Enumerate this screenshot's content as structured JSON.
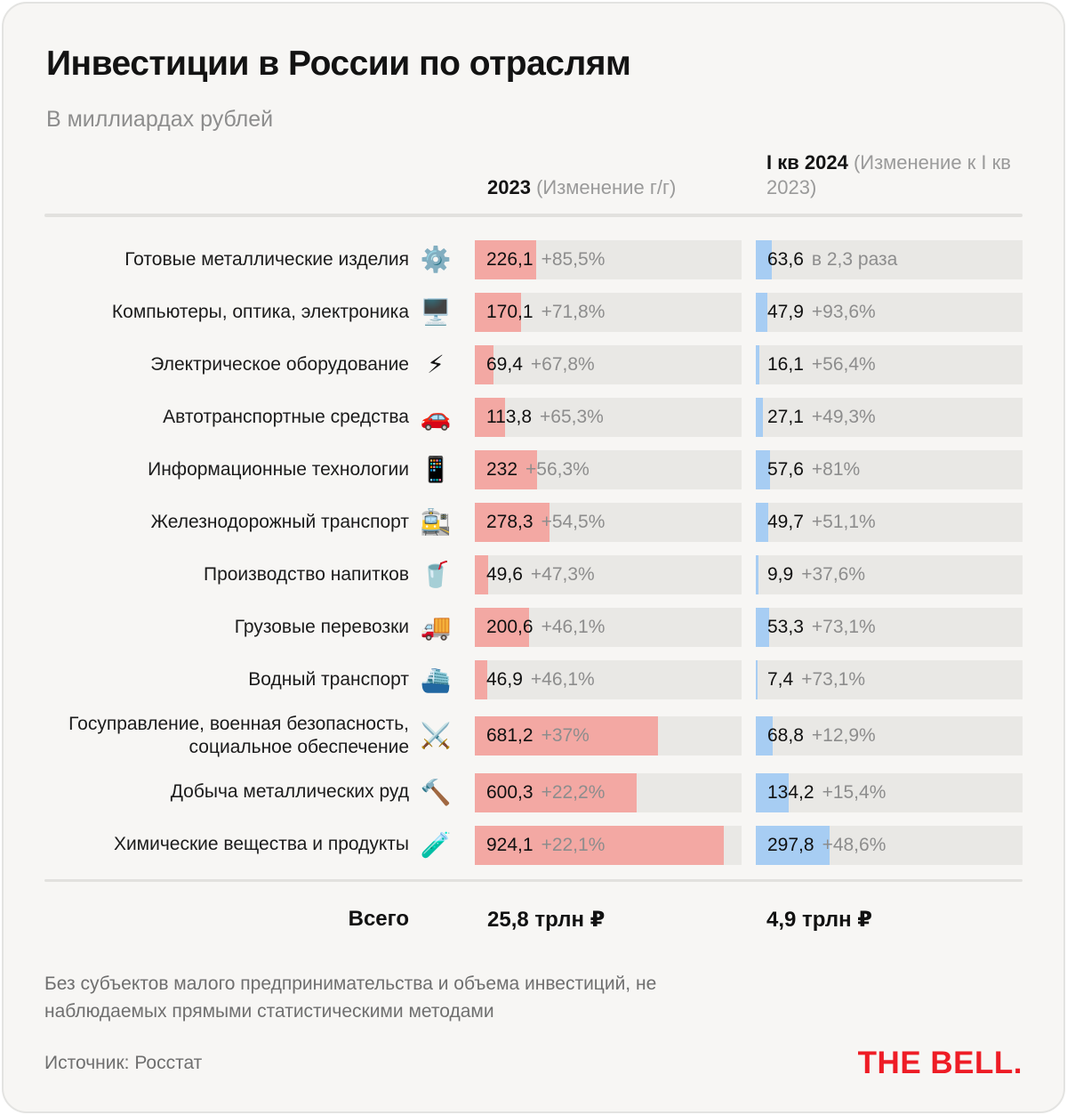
{
  "header": {
    "title": "Инвестиции в России по отраслям",
    "subtitle": "В миллиардах рублей",
    "col_2023_label": "2023",
    "col_2023_note": " (Изменение г/г)",
    "col_q1_label": "I кв 2024",
    "col_q1_note": " (Изменение к I кв 2023)"
  },
  "chart_data": {
    "type": "bar",
    "title": "Инвестиции в России по отраслям",
    "unit": "млрд рублей",
    "columns": [
      {
        "key": "2023",
        "label": "2023",
        "note": "(Изменение г/г)"
      },
      {
        "key": "q1_2024",
        "label": "I кв 2024",
        "note": "(Изменение к I кв 2023)"
      }
    ],
    "rows": [
      {
        "label": "Готовые металлические изделия",
        "icon": "gear-icon",
        "emoji": "⚙️",
        "value_2023": 226.1,
        "value_2023_text": "226,1",
        "change_2023": "+85,5%",
        "value_q1_2024": 63.6,
        "value_q1_2024_text": "63,6",
        "change_q1_2024": "в 2,3 раза"
      },
      {
        "label": "Компьютеры, оптика, электроника",
        "icon": "desktop-computer-icon",
        "emoji": "🖥️",
        "value_2023": 170.1,
        "value_2023_text": "170,1",
        "change_2023": "+71,8%",
        "value_q1_2024": 47.9,
        "value_q1_2024_text": "47,9",
        "change_q1_2024": "+93,6%"
      },
      {
        "label": "Электрическое оборудование",
        "icon": "high-voltage-icon",
        "emoji": "⚡",
        "value_2023": 69.4,
        "value_2023_text": "69,4",
        "change_2023": "+67,8%",
        "value_q1_2024": 16.1,
        "value_q1_2024_text": "16,1",
        "change_q1_2024": "+56,4%"
      },
      {
        "label": "Автотранспортные средства",
        "icon": "car-icon",
        "emoji": "🚗",
        "value_2023": 113.8,
        "value_2023_text": "113,8",
        "change_2023": "+65,3%",
        "value_q1_2024": 27.1,
        "value_q1_2024_text": "27,1",
        "change_q1_2024": "+49,3%"
      },
      {
        "label": "Информационные технологии",
        "icon": "smartphone-icon",
        "emoji": "📱",
        "value_2023": 232,
        "value_2023_text": "232",
        "change_2023": "+56,3%",
        "value_q1_2024": 57.6,
        "value_q1_2024_text": "57,6",
        "change_q1_2024": "+81%"
      },
      {
        "label": "Железнодорожный транспорт",
        "icon": "train-station-icon",
        "emoji": "🚉",
        "value_2023": 278.3,
        "value_2023_text": "278,3",
        "change_2023": "+54,5%",
        "value_q1_2024": 49.7,
        "value_q1_2024_text": "49,7",
        "change_q1_2024": "+51,1%"
      },
      {
        "label": "Производство напитков",
        "icon": "cup-with-straw-icon",
        "emoji": "🥤",
        "value_2023": 49.6,
        "value_2023_text": "49,6",
        "change_2023": "+47,3%",
        "value_q1_2024": 9.9,
        "value_q1_2024_text": "9,9",
        "change_q1_2024": "+37,6%"
      },
      {
        "label": "Грузовые перевозки",
        "icon": "delivery-truck-icon",
        "emoji": "🚚",
        "value_2023": 200.6,
        "value_2023_text": "200,6",
        "change_2023": "+46,1%",
        "value_q1_2024": 53.3,
        "value_q1_2024_text": "53,3",
        "change_q1_2024": "+73,1%"
      },
      {
        "label": "Водный транспорт",
        "icon": "ferry-icon",
        "emoji": "⛴️",
        "value_2023": 46.9,
        "value_2023_text": "46,9",
        "change_2023": "+46,1%",
        "value_q1_2024": 7.4,
        "value_q1_2024_text": "7,4",
        "change_q1_2024": "+73,1%"
      },
      {
        "label": "Госуправление, военная безопасность, социальное обеспечение",
        "icon": "crossed-swords-icon",
        "emoji": "⚔️",
        "value_2023": 681.2,
        "value_2023_text": "681,2",
        "change_2023": "+37%",
        "value_q1_2024": 68.8,
        "value_q1_2024_text": "68,8",
        "change_q1_2024": "+12,9%"
      },
      {
        "label": "Добыча металлических руд",
        "icon": "hammer-icon",
        "emoji": "🔨",
        "value_2023": 600.3,
        "value_2023_text": "600,3",
        "change_2023": "+22,2%",
        "value_q1_2024": 134.2,
        "value_q1_2024_text": "134,2",
        "change_q1_2024": "+15,4%"
      },
      {
        "label": "Химические вещества и продукты",
        "icon": "test-tube-icon",
        "emoji": "🧪",
        "value_2023": 924.1,
        "value_2023_text": "924,1",
        "change_2023": "+22,1%",
        "value_q1_2024": 297.8,
        "value_q1_2024_text": "297,8",
        "change_q1_2024": "+48,6%"
      }
    ],
    "layout": {
      "left_scale_max": 990,
      "right_scale_max": 1080,
      "bar_color_2023": "#F3A8A3",
      "bar_color_q1_2024": "#A7CDF3",
      "track_color": "#E9E8E5",
      "grid": false,
      "legend": "none"
    }
  },
  "total": {
    "label": "Всего",
    "value_2023": "25,8 трлн ₽",
    "value_q1_2024": "4,9 трлн ₽"
  },
  "footer": {
    "note": "Без субъектов малого предпринимательства и объема инвестиций, не наблюдаемых прямыми статистическими методами",
    "source": "Источник: Росстат",
    "logo": "THE BELL.",
    "logo_color": "#EE1C25"
  }
}
